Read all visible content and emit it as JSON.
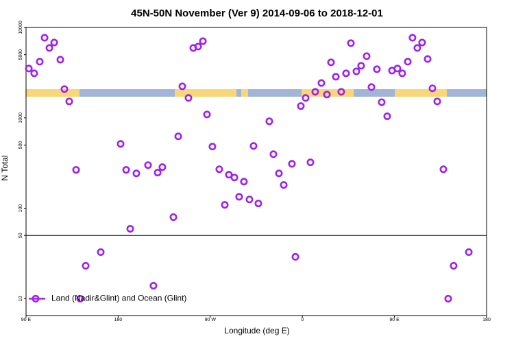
{
  "chart_data": {
    "type": "scatter",
    "title": "45N-50N November (Ver 9)   2014-09-06 to 2018-12-01",
    "x_label": "Longitude (deg E)",
    "y_label": "N Total",
    "log_y": true,
    "legend": "bottom-left",
    "ref_line": 50,
    "xlim": [
      90,
      540
    ],
    "xticks": [
      {
        "value": 90,
        "label": "90 E"
      },
      180,
      {
        "value": 270,
        "label": "90 W"
      },
      {
        "value": 360,
        "label": "0"
      },
      {
        "value": 450,
        "label": "90 E"
      },
      {
        "value": 540,
        "label": "180"
      }
    ],
    "ylim": [
      6.5,
      10000
    ],
    "yticks": [
      10,
      50,
      100,
      500,
      1000,
      5000,
      10000
    ],
    "series": [
      {
        "name": "Land (Nadir&Glint) and Ocean (Glint)",
        "color": "#a020f0",
        "x": [
          92.7,
          98.0,
          103.4,
          108.1,
          112.8,
          117.5,
          123.5,
          127.5,
          132.2,
          138.9,
          142.9,
          148.3,
          163.0,
          182.4,
          187.8,
          191.8,
          197.8,
          209.2,
          214.5,
          218.6,
          223.2,
          234.0,
          238.7,
          242.7,
          248.7,
          253.4,
          258.1,
          262.8,
          266.8,
          272.1,
          278.8,
          284.2,
          288.2,
          293.6,
          298.2,
          302.9,
          308.3,
          312.3,
          317.0,
          327.7,
          331.7,
          337.1,
          341.8,
          349.8,
          353.2,
          358.5,
          363.2,
          367.9,
          372.6,
          378.6,
          384.0,
          388.0,
          392.7,
          398.0,
          402.7,
          407.4,
          412.8,
          417.4,
          422.8,
          427.5,
          432.8,
          437.5,
          442.9,
          447.6,
          452.9,
          457.6,
          463.0,
          467.6,
          472.3,
          477.0,
          482.4,
          487.1,
          491.8,
          497.8,
          502.5,
          507.8,
          522.6
        ],
        "values": [
          3510,
          3110,
          4180,
          7690,
          5930,
          6810,
          4400,
          2080,
          1520,
          266,
          10,
          23.1,
          32.7,
          515,
          266,
          59.3,
          243,
          300,
          13.9,
          248,
          285,
          79.7,
          624,
          2230,
          1660,
          5930,
          6140,
          7050,
          1090,
          481,
          270,
          109,
          235,
          219,
          134,
          197,
          125,
          489,
          113,
          916,
          396,
          243,
          181,
          310,
          29.0,
          1350,
          1660,
          322,
          1940,
          2430,
          1810,
          4110,
          2850,
          1940,
          3110,
          6700,
          3270,
          3770,
          4810,
          2190,
          3450,
          1490,
          1040,
          3330,
          3510,
          3110,
          4180,
          7690,
          5930,
          6810,
          4480,
          2120,
          1520,
          270,
          10,
          23.1,
          32.7
        ]
      }
    ]
  }
}
